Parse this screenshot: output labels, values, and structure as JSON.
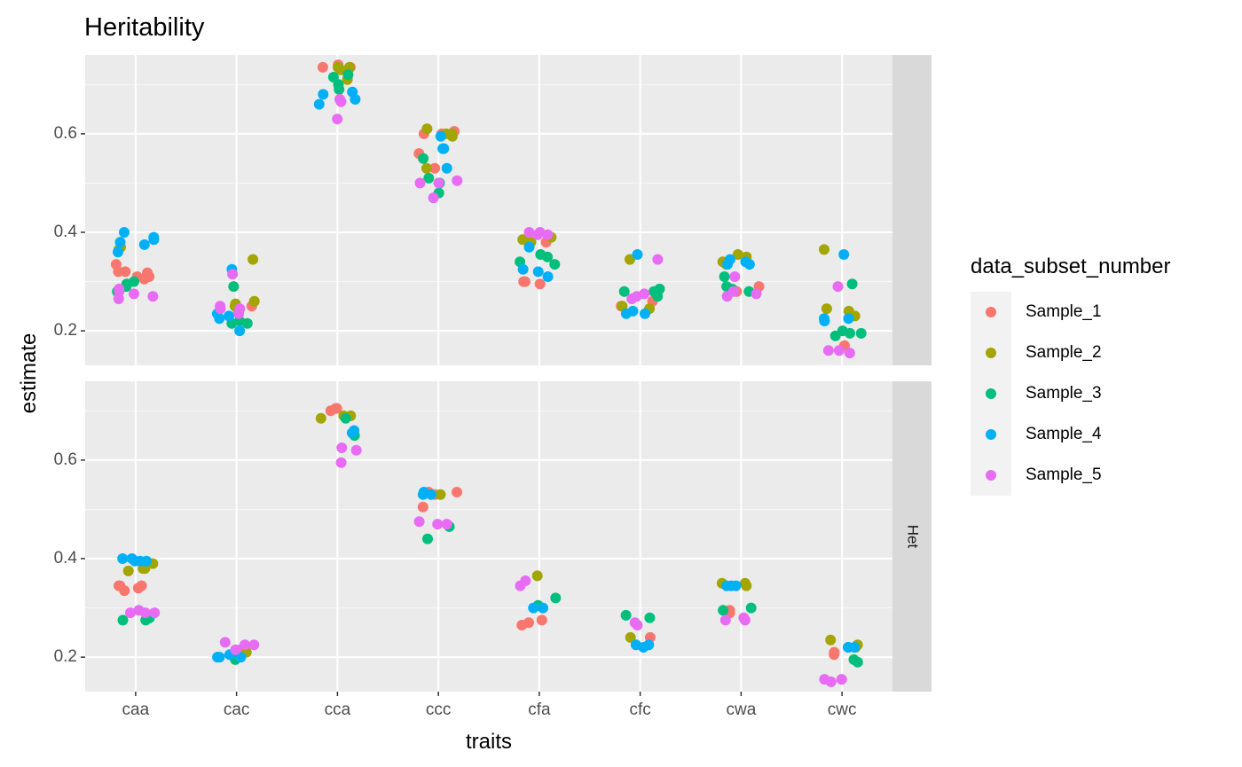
{
  "chart_data": {
    "type": "scatter",
    "title": "Heritability",
    "xlabel": "traits",
    "ylabel": "estimate",
    "categories": [
      "caa",
      "cac",
      "cca",
      "ccc",
      "cfa",
      "cfc",
      "cwa",
      "cwc"
    ],
    "yticks": [
      0.2,
      0.4,
      0.6
    ],
    "ylim": [
      0.13,
      0.76
    ],
    "grid": true,
    "legend_position": "right",
    "legend": {
      "title": "data_subset_number",
      "entries": [
        "Sample_1",
        "Sample_2",
        "Sample_3",
        "Sample_4",
        "Sample_5"
      ]
    },
    "colors": {
      "Sample_1": "#F8766D",
      "Sample_2": "#A3A500",
      "Sample_3": "#00BF7D",
      "Sample_4": "#00B0F6",
      "Sample_5": "#E76BF3"
    },
    "panels": [
      {
        "strip": "",
        "series": [
          {
            "name": "Sample_1",
            "points": {
              "caa": [
                0.335,
                0.32,
                0.31,
                0.315,
                0.32,
                0.305,
                0.318,
                0.31
              ],
              "cac": [
                0.24,
                0.25
              ],
              "cca": [
                0.74,
                0.735,
                0.735
              ],
              "ccc": [
                0.6,
                0.605,
                0.56,
                0.53,
                0.6
              ],
              "cfa": [
                0.295,
                0.3,
                0.3,
                0.38
              ],
              "cfc": [
                0.25,
                0.26
              ],
              "cwa": [
                0.28,
                0.29
              ],
              "cwc": [
                0.17
              ]
            }
          },
          {
            "name": "Sample_2",
            "points": {
              "caa": [
                0.37,
                0.365
              ],
              "cac": [
                0.345,
                0.255,
                0.26,
                0.25
              ],
              "cca": [
                0.735,
                0.735,
                0.73,
                0.71
              ],
              "ccc": [
                0.595,
                0.6,
                0.61,
                0.53,
                0.6
              ],
              "cfa": [
                0.38,
                0.39,
                0.385
              ],
              "cfc": [
                0.345,
                0.245,
                0.25
              ],
              "cwa": [
                0.35,
                0.355,
                0.34,
                0.335
              ],
              "cwc": [
                0.365,
                0.24,
                0.245,
                0.23
              ]
            }
          },
          {
            "name": "Sample_3",
            "points": {
              "caa": [
                0.295,
                0.29,
                0.3,
                0.28
              ],
              "cac": [
                0.215,
                0.22,
                0.215,
                0.29
              ],
              "cca": [
                0.72,
                0.715,
                0.7,
                0.69
              ],
              "ccc": [
                0.55,
                0.51,
                0.48,
                0.5
              ],
              "cfa": [
                0.35,
                0.355,
                0.34,
                0.335
              ],
              "cfc": [
                0.285,
                0.28,
                0.27,
                0.28
              ],
              "cwa": [
                0.31,
                0.29,
                0.285,
                0.28
              ],
              "cwc": [
                0.295,
                0.195,
                0.2,
                0.19,
                0.195
              ]
            }
          },
          {
            "name": "Sample_4",
            "points": {
              "caa": [
                0.38,
                0.39,
                0.4,
                0.385,
                0.375,
                0.36
              ],
              "cac": [
                0.325,
                0.235,
                0.23,
                0.2,
                0.225
              ],
              "cca": [
                0.68,
                0.67,
                0.685,
                0.66
              ],
              "ccc": [
                0.57,
                0.53,
                0.57,
                0.595
              ],
              "cfa": [
                0.325,
                0.32,
                0.37,
                0.31
              ],
              "cfc": [
                0.355,
                0.235,
                0.235,
                0.24
              ],
              "cwa": [
                0.335,
                0.34,
                0.335,
                0.345
              ],
              "cwc": [
                0.355,
                0.225,
                0.22,
                0.225
              ]
            }
          },
          {
            "name": "Sample_5",
            "points": {
              "caa": [
                0.275,
                0.265,
                0.27,
                0.28,
                0.285
              ],
              "cac": [
                0.315,
                0.25,
                0.245,
                0.235,
                0.245
              ],
              "cca": [
                0.67,
                0.665,
                0.63
              ],
              "ccc": [
                0.5,
                0.505,
                0.47,
                0.5
              ],
              "cfa": [
                0.4,
                0.395,
                0.4,
                0.395
              ],
              "cfc": [
                0.345,
                0.27,
                0.275,
                0.265
              ],
              "cwa": [
                0.28,
                0.275,
                0.31,
                0.27
              ],
              "cwc": [
                0.29,
                0.16,
                0.155,
                0.16
              ]
            }
          }
        ]
      },
      {
        "strip": "Het",
        "series": [
          {
            "name": "Sample_1",
            "points": {
              "caa": [
                0.345,
                0.34,
                0.345,
                0.335,
                0.345
              ],
              "cac": [
                0.215
              ],
              "cca": [
                0.705,
                0.705,
                0.7
              ],
              "ccc": [
                0.535,
                0.53,
                0.505,
                0.535
              ],
              "cfa": [
                0.27,
                0.265,
                0.275
              ],
              "cfc": [
                0.24
              ],
              "cwa": [
                0.295,
                0.29
              ],
              "cwc": [
                0.21,
                0.205
              ]
            }
          },
          {
            "name": "Sample_2",
            "points": {
              "caa": [
                0.375,
                0.38,
                0.39,
                0.38
              ],
              "cac": [
                0.21
              ],
              "cca": [
                0.69,
                0.685,
                0.69
              ],
              "ccc": [
                0.53
              ],
              "cfa": [
                0.365
              ],
              "cfc": [
                0.24
              ],
              "cwa": [
                0.345,
                0.35,
                0.35
              ],
              "cwc": [
                0.235,
                0.225,
                0.22
              ]
            }
          },
          {
            "name": "Sample_3",
            "points": {
              "caa": [
                0.28,
                0.275,
                0.275
              ],
              "cac": [
                0.195,
                0.2
              ],
              "cca": [
                0.685,
                0.65
              ],
              "ccc": [
                0.465,
                0.44
              ],
              "cfa": [
                0.305,
                0.32
              ],
              "cfc": [
                0.285,
                0.28
              ],
              "cwa": [
                0.3,
                0.295
              ],
              "cwc": [
                0.195,
                0.19
              ]
            }
          },
          {
            "name": "Sample_4",
            "points": {
              "caa": [
                0.395,
                0.4,
                0.395,
                0.4,
                0.395
              ],
              "cac": [
                0.2,
                0.2,
                0.205,
                0.2
              ],
              "cca": [
                0.66,
                0.655
              ],
              "ccc": [
                0.53,
                0.535,
                0.53
              ],
              "cfa": [
                0.3,
                0.3
              ],
              "cfc": [
                0.225,
                0.22,
                0.225
              ],
              "cwa": [
                0.345,
                0.345,
                0.345
              ],
              "cwc": [
                0.22,
                0.22,
                0.22
              ]
            }
          },
          {
            "name": "Sample_5",
            "points": {
              "caa": [
                0.295,
                0.29,
                0.29,
                0.29
              ],
              "cac": [
                0.215,
                0.225,
                0.225,
                0.23
              ],
              "cca": [
                0.595,
                0.62,
                0.625
              ],
              "ccc": [
                0.47,
                0.47,
                0.475
              ],
              "cfa": [
                0.345,
                0.355
              ],
              "cfc": [
                0.27,
                0.265
              ],
              "cwa": [
                0.275,
                0.275,
                0.28
              ],
              "cwc": [
                0.155,
                0.15,
                0.155
              ]
            }
          }
        ]
      }
    ]
  }
}
